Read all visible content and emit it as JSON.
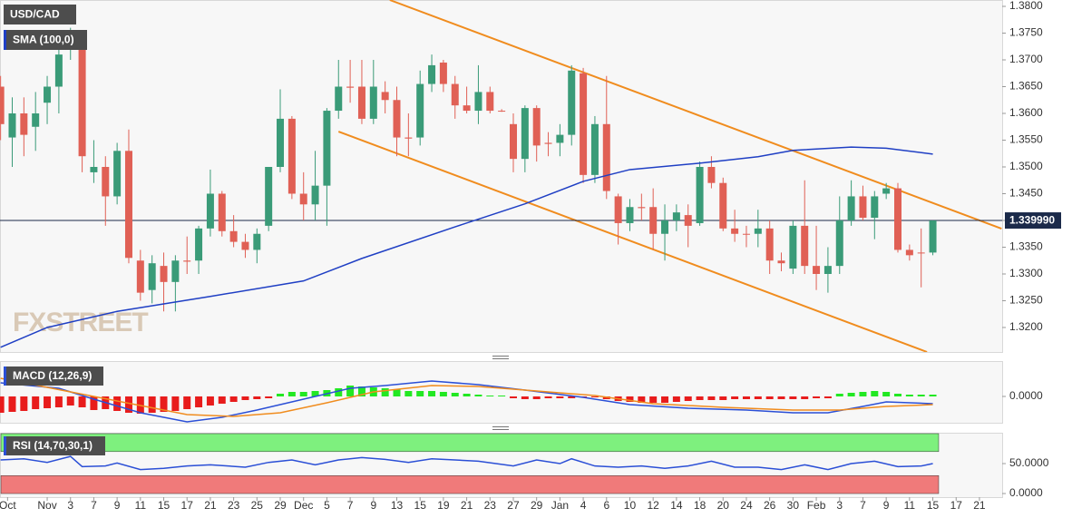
{
  "chart_data": [
    {
      "type": "candlestick",
      "title": "USD/CAD",
      "x": [
        -4,
        -3,
        -2,
        -1,
        0,
        1,
        2,
        3,
        4,
        5,
        6,
        7,
        8,
        9,
        10,
        11,
        12,
        13,
        14,
        15,
        16,
        17,
        18,
        19,
        20,
        21,
        22,
        23,
        24,
        25,
        26,
        27,
        28,
        29,
        30,
        31,
        32,
        33,
        34,
        35,
        36,
        37,
        38,
        39,
        40,
        41,
        42,
        43,
        44,
        45,
        46,
        47,
        48,
        49,
        50,
        51,
        52,
        53,
        54,
        55,
        56,
        57,
        58,
        59,
        60,
        61,
        62,
        63,
        64,
        65,
        66,
        67,
        68,
        69,
        70,
        71,
        72,
        73,
        74,
        75,
        76
      ],
      "open": [
        1.365,
        1.3555,
        1.36,
        1.3575,
        1.362,
        1.365,
        1.372,
        1.374,
        1.349,
        1.35,
        1.3445,
        1.353,
        1.3325,
        1.327,
        1.3315,
        1.3285,
        1.3325,
        1.3325,
        1.3385,
        1.345,
        1.338,
        1.336,
        1.3345,
        1.339,
        1.35,
        1.359,
        1.345,
        1.343,
        1.3465,
        1.3605,
        1.365,
        1.365,
        1.359,
        1.364,
        1.3625,
        1.3555,
        1.3555,
        1.3655,
        1.3695,
        1.3655,
        1.3615,
        1.3605,
        1.364,
        1.3605,
        1.358,
        1.3515,
        1.361,
        1.3545,
        1.3545,
        1.356,
        1.3675,
        1.3485,
        1.358,
        1.3445,
        1.3395,
        1.3425,
        1.3425,
        1.3375,
        1.34,
        1.341,
        1.3395,
        1.35,
        1.347,
        1.3385,
        1.3375,
        1.3375,
        1.3385,
        1.3325,
        1.331,
        1.339,
        1.3315,
        1.33,
        1.3315,
        1.34,
        1.3445,
        1.3405,
        1.345,
        1.346,
        1.3345,
        1.334,
        1.334
      ],
      "high": [
        1.367,
        1.363,
        1.363,
        1.364,
        1.367,
        1.373,
        1.376,
        1.3755,
        1.355,
        1.352,
        1.3545,
        1.357,
        1.3345,
        1.3335,
        1.334,
        1.3335,
        1.337,
        1.339,
        1.3495,
        1.3455,
        1.341,
        1.3375,
        1.3385,
        1.35,
        1.3645,
        1.3595,
        1.349,
        1.353,
        1.361,
        1.37,
        1.37,
        1.37,
        1.37,
        1.366,
        1.365,
        1.36,
        1.368,
        1.371,
        1.37,
        1.367,
        1.365,
        1.369,
        1.365,
        1.3608,
        1.36,
        1.3615,
        1.3615,
        1.3565,
        1.358,
        1.369,
        1.3685,
        1.3595,
        1.367,
        1.345,
        1.344,
        1.345,
        1.346,
        1.343,
        1.343,
        1.343,
        1.351,
        1.352,
        1.348,
        1.342,
        1.339,
        1.342,
        1.34,
        1.334,
        1.34,
        1.3475,
        1.339,
        1.335,
        1.3445,
        1.3475,
        1.3465,
        1.3455,
        1.347,
        1.347,
        1.3355,
        1.3385,
        1.34
      ],
      "low": [
        1.355,
        1.35,
        1.352,
        1.353,
        1.358,
        1.36,
        1.37,
        1.349,
        1.347,
        1.339,
        1.343,
        1.332,
        1.325,
        1.3245,
        1.323,
        1.323,
        1.33,
        1.33,
        1.337,
        1.337,
        1.335,
        1.333,
        1.332,
        1.338,
        1.349,
        1.344,
        1.34,
        1.34,
        1.339,
        1.359,
        1.362,
        1.358,
        1.358,
        1.36,
        1.352,
        1.352,
        1.354,
        1.364,
        1.364,
        1.359,
        1.36,
        1.358,
        1.36,
        1.3603,
        1.349,
        1.349,
        1.351,
        1.352,
        1.352,
        1.354,
        1.347,
        1.347,
        1.344,
        1.3355,
        1.338,
        1.34,
        1.3345,
        1.3325,
        1.338,
        1.335,
        1.339,
        1.346,
        1.338,
        1.336,
        1.335,
        1.335,
        1.33,
        1.3305,
        1.33,
        1.33,
        1.327,
        1.3265,
        1.33,
        1.339,
        1.34,
        1.3365,
        1.344,
        1.334,
        1.3325,
        1.3275,
        1.3335
      ],
      "close": [
        1.358,
        1.36,
        1.356,
        1.36,
        1.365,
        1.371,
        1.374,
        1.352,
        1.35,
        1.3445,
        1.353,
        1.333,
        1.3265,
        1.332,
        1.3285,
        1.3325,
        1.3323,
        1.3385,
        1.345,
        1.338,
        1.336,
        1.3345,
        1.3375,
        1.35,
        1.359,
        1.345,
        1.343,
        1.3465,
        1.3605,
        1.365,
        1.3648,
        1.359,
        1.365,
        1.3625,
        1.3555,
        1.3553,
        1.3655,
        1.369,
        1.3655,
        1.3615,
        1.3605,
        1.364,
        1.3605,
        1.3604,
        1.3515,
        1.361,
        1.354,
        1.3543,
        1.356,
        1.368,
        1.3485,
        1.358,
        1.3455,
        1.3395,
        1.3425,
        1.3423,
        1.3375,
        1.34,
        1.3415,
        1.339,
        1.35,
        1.347,
        1.3385,
        1.3375,
        1.3374,
        1.3385,
        1.3325,
        1.332,
        1.339,
        1.3315,
        1.33,
        1.3315,
        1.34,
        1.3445,
        1.3405,
        1.3445,
        1.346,
        1.3345,
        1.3335,
        1.3339,
        1.33999
      ],
      "up_color": "#3a9b78",
      "down_color": "#e06055",
      "series": [
        {
          "name": "SMA (100,0)",
          "color": "#1f3fc4",
          "x": [
            -4,
            0,
            6,
            14,
            22,
            27,
            35,
            41,
            46,
            50,
            56,
            61,
            64,
            69,
            72,
            76
          ],
          "values": [
            1.3163,
            1.32,
            1.323,
            1.3258,
            1.3287,
            1.3329,
            1.3388,
            1.3431,
            1.3473,
            1.3495,
            1.3507,
            1.3519,
            1.3531,
            1.3537,
            1.3535,
            1.3524
          ]
        }
      ],
      "trendlines": [
        {
          "color": "#f08c1e",
          "x": [
            29.4,
            81.9
          ],
          "values": [
            1.38119,
            1.33847
          ]
        },
        {
          "color": "#f08c1e",
          "x": [
            25,
            75.5
          ],
          "values": [
            1.35661,
            1.31542
          ]
        }
      ],
      "current_price": {
        "value": 1.33999,
        "label": "1.339990"
      },
      "watermark": "FXSTREET",
      "xlim": [
        -4.05,
        81.95
      ],
      "ylim": [
        1.31542,
        1.38119
      ],
      "yticks": [
        {
          "value": 1.32,
          "label": "1.3200"
        },
        {
          "value": 1.325,
          "label": "1.3250"
        },
        {
          "value": 1.33,
          "label": "1.3300"
        },
        {
          "value": 1.335,
          "label": "1.3350"
        },
        {
          "value": 1.34,
          "label": "1.3400"
        },
        {
          "value": 1.345,
          "label": "1.3450"
        },
        {
          "value": 1.35,
          "label": "1.3500"
        },
        {
          "value": 1.355,
          "label": "1.3550"
        },
        {
          "value": 1.36,
          "label": "1.3600"
        },
        {
          "value": 1.365,
          "label": "1.3650"
        },
        {
          "value": 1.37,
          "label": "1.3700"
        },
        {
          "value": 1.375,
          "label": "1.3750"
        },
        {
          "value": 1.38,
          "label": "1.3800"
        }
      ]
    },
    {
      "type": "macd",
      "title": "MACD (12,26,9)",
      "histogram": [
        -0.0036,
        -0.0034,
        -0.0032,
        -0.0028,
        -0.0026,
        -0.0024,
        -0.002,
        -0.0024,
        -0.003,
        -0.0028,
        -0.0032,
        -0.0036,
        -0.0038,
        -0.0036,
        -0.0034,
        -0.0032,
        -0.0028,
        -0.0024,
        -0.002,
        -0.0016,
        -0.0012,
        -0.0008,
        -0.0006,
        -0.0004,
        0.0006,
        0.001,
        0.001,
        0.0012,
        0.0014,
        0.0018,
        0.0024,
        0.0022,
        0.002,
        0.0018,
        0.0016,
        0.0012,
        0.0012,
        0.0012,
        0.001,
        0.0008,
        0.0006,
        0.0004,
        0.0002,
        0.0002,
        -0.0004,
        -0.0006,
        -0.0006,
        -0.0004,
        -0.0004,
        -0.0004,
        -0.0002,
        -0.0002,
        -0.0006,
        -0.001,
        -0.0012,
        -0.0014,
        -0.0014,
        -0.0014,
        -0.0012,
        -0.001,
        -0.0008,
        -0.0008,
        -0.0008,
        -0.0006,
        -0.0006,
        -0.0006,
        -0.0006,
        -0.0006,
        -0.0006,
        -0.0006,
        -0.0004,
        -0.0004,
        0.0006,
        0.0008,
        0.001,
        0.0012,
        0.001,
        0.0006,
        0.0004,
        0.0004,
        0.0004
      ],
      "pos_color": "#22e822",
      "neg_color": "#e81c1c",
      "series": [
        {
          "color": "#2b4fd6",
          "x": [
            -4,
            1,
            4,
            8,
            12,
            15,
            18,
            22,
            26,
            29,
            33,
            37,
            41,
            46,
            50,
            55,
            60,
            64,
            67,
            70,
            72,
            76
          ],
          "values": [
            0.003,
            0.0018,
            -0.0006,
            -0.0036,
            -0.0056,
            -0.0046,
            -0.003,
            -0.0006,
            0.0018,
            0.0024,
            0.0034,
            0.0026,
            0.0014,
            -0.0002,
            -0.0018,
            -0.0026,
            -0.003,
            -0.0036,
            -0.0036,
            -0.0022,
            -0.0012,
            -0.0016
          ]
        },
        {
          "color": "#f08c1e",
          "x": [
            -4,
            4,
            8,
            12,
            16,
            20,
            24,
            28,
            33,
            37,
            42,
            47,
            52,
            58,
            64,
            68,
            72,
            76
          ],
          "values": [
            0.004,
            0,
            -0.002,
            -0.004,
            -0.0044,
            -0.0036,
            -0.0014,
            0.001,
            0.0024,
            0.0022,
            0.0012,
            0.0002,
            -0.0016,
            -0.0024,
            -0.003,
            -0.003,
            -0.0022,
            -0.0018
          ]
        }
      ],
      "xlim": [
        -4.05,
        81.95
      ],
      "ylim": [
        -0.0058,
        0.0078
      ],
      "yticks": [
        {
          "value": 0,
          "label": "0.0000"
        }
      ]
    },
    {
      "type": "rsi",
      "title": "RSI (14,70,30,1)",
      "series": [
        {
          "color": "#2b4fd6",
          "x": [
            -4,
            -2,
            0,
            2,
            3,
            5,
            6,
            8,
            10,
            12,
            14,
            17,
            19,
            21,
            23,
            25,
            27,
            29,
            31,
            33,
            35,
            37,
            40,
            42,
            44,
            45,
            47,
            49,
            51,
            53,
            55,
            57,
            59,
            61,
            63,
            65,
            67,
            69,
            71,
            73,
            75,
            76
          ],
          "values": [
            56,
            58,
            52,
            62,
            45,
            46,
            51,
            40,
            42,
            46,
            48,
            44,
            52,
            56,
            48,
            56,
            60,
            57,
            52,
            58,
            56,
            54,
            46,
            56,
            50,
            58,
            46,
            44,
            46,
            42,
            46,
            54,
            44,
            44,
            40,
            48,
            40,
            50,
            54,
            45,
            46,
            50
          ]
        }
      ],
      "bands": [
        {
          "range": [
            70,
            100
          ],
          "color": "#7ef07e"
        },
        {
          "range": [
            0,
            30
          ],
          "color": "#f07a7a"
        }
      ],
      "band_end": 76.5,
      "xlim": [
        -4.05,
        81.95
      ],
      "ylim": [
        -6,
        101.5
      ],
      "yticks": [
        {
          "value": 50,
          "label": "50.0000"
        },
        {
          "value": 0,
          "label": "0.0000"
        }
      ],
      "xticks": [
        {
          "value": -3.4,
          "label": "Oct"
        },
        {
          "value": 0,
          "label": "Nov"
        },
        {
          "value": 2,
          "label": "3"
        },
        {
          "value": 4,
          "label": "7"
        },
        {
          "value": 6,
          "label": "9"
        },
        {
          "value": 8,
          "label": "11"
        },
        {
          "value": 10,
          "label": "15"
        },
        {
          "value": 12,
          "label": "17"
        },
        {
          "value": 14,
          "label": "21"
        },
        {
          "value": 16,
          "label": "23"
        },
        {
          "value": 18,
          "label": "25"
        },
        {
          "value": 20,
          "label": "29"
        },
        {
          "value": 22,
          "label": "Dec"
        },
        {
          "value": 24,
          "label": "5"
        },
        {
          "value": 26,
          "label": "7"
        },
        {
          "value": 28,
          "label": "9"
        },
        {
          "value": 30,
          "label": "13"
        },
        {
          "value": 32,
          "label": "15"
        },
        {
          "value": 34,
          "label": "19"
        },
        {
          "value": 36,
          "label": "21"
        },
        {
          "value": 38,
          "label": "23"
        },
        {
          "value": 40,
          "label": "27"
        },
        {
          "value": 42,
          "label": "29"
        },
        {
          "value": 44,
          "label": "Jan"
        },
        {
          "value": 46,
          "label": "4"
        },
        {
          "value": 48,
          "label": "6"
        },
        {
          "value": 50,
          "label": "10"
        },
        {
          "value": 52,
          "label": "12"
        },
        {
          "value": 54,
          "label": "14"
        },
        {
          "value": 56,
          "label": "18"
        },
        {
          "value": 58,
          "label": "20"
        },
        {
          "value": 60,
          "label": "24"
        },
        {
          "value": 62,
          "label": "26"
        },
        {
          "value": 64,
          "label": "30"
        },
        {
          "value": 66,
          "label": "Feb"
        },
        {
          "value": 68,
          "label": "3"
        },
        {
          "value": 70,
          "label": "7"
        },
        {
          "value": 72,
          "label": "9"
        },
        {
          "value": 74,
          "label": "11"
        },
        {
          "value": 76,
          "label": "15"
        },
        {
          "value": 78,
          "label": "17"
        },
        {
          "value": 80,
          "label": "21"
        }
      ]
    }
  ]
}
